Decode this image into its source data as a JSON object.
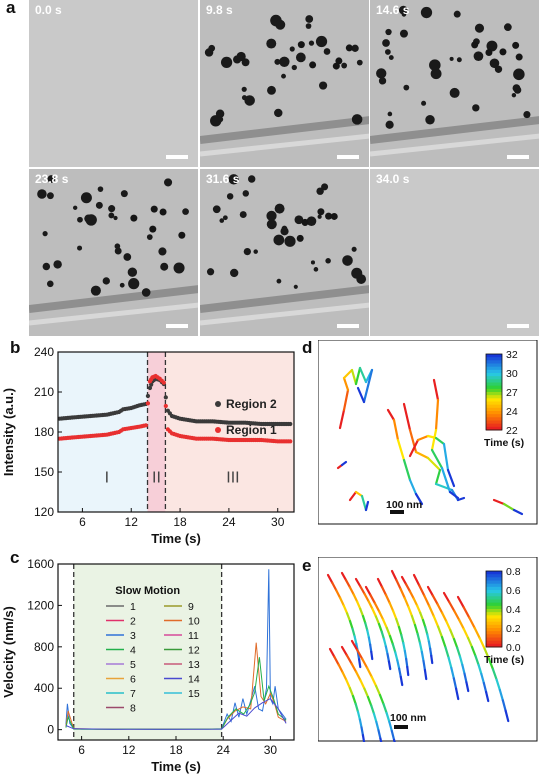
{
  "figure": {
    "panel_a": {
      "letter": "a",
      "frames": [
        {
          "time": "0.0 s",
          "particles": false
        },
        {
          "time": "9.8 s",
          "particles": true
        },
        {
          "time": "14.6 s",
          "particles": true
        },
        {
          "time": "23.8 s",
          "particles": true
        },
        {
          "time": "31.6 s",
          "particles": true
        },
        {
          "time": "34.0 s",
          "particles": false
        }
      ]
    },
    "panel_b": {
      "letter": "b",
      "region_labels": [
        "I",
        "II",
        "III"
      ],
      "colors": {
        "region2": "#3a3a3a",
        "region1": "#e83030",
        "zone1": "#eaf5fb",
        "zone2": "#f7cfd8",
        "zone3": "#fbe6e2"
      }
    },
    "panel_c": {
      "letter": "c",
      "legend_title": "Slow Motion",
      "legend_entries": [
        "1",
        "2",
        "3",
        "4",
        "5",
        "6",
        "7",
        "8",
        "9",
        "10",
        "11",
        "12",
        "13",
        "14",
        "15"
      ],
      "legend_colors": [
        "#6b6b6b",
        "#e0306a",
        "#2f72d8",
        "#23b04b",
        "#a67ad6",
        "#e8a33a",
        "#28bfc9",
        "#9c4a6b",
        "#9a9a2a",
        "#e06b2a",
        "#d64a9a",
        "#3a9a3a",
        "#c85a7a",
        "#4a4ad0",
        "#35c0d8"
      ]
    },
    "panel_d": {
      "letter": "d",
      "colorbar_ticks": [
        "32",
        "30",
        "27",
        "24",
        "22"
      ],
      "colorbar_label": "Time (s)",
      "scalebar_label": "100 nm"
    },
    "panel_e": {
      "letter": "e",
      "colorbar_ticks": [
        "0.8",
        "0.6",
        "0.4",
        "0.2",
        "0.0"
      ],
      "colorbar_label": "Time (s)",
      "scalebar_label": "100 nm"
    }
  },
  "chart_data": [
    {
      "type": "scatter",
      "xlabel": "Time (s)",
      "ylabel": "Intensity (a.u.)",
      "xlim": [
        3,
        32
      ],
      "ylim": [
        120,
        240
      ],
      "x_ticks": [
        "6",
        "12",
        "18",
        "24",
        "30"
      ],
      "y_ticks": [
        "120",
        "150",
        "180",
        "210",
        "240"
      ],
      "vlines": [
        14,
        16.2
      ],
      "legend": "right",
      "series": [
        {
          "name": "Region 2",
          "points": [
            [
              3.2,
              190
            ],
            [
              5,
              191
            ],
            [
              7,
              192
            ],
            [
              9,
              193
            ],
            [
              10.5,
              195
            ],
            [
              11,
              197
            ],
            [
              12,
              198
            ],
            [
              13,
              200
            ],
            [
              13.8,
              201
            ],
            [
              14.3,
              213
            ],
            [
              14.6,
              218
            ],
            [
              15.0,
              220
            ],
            [
              15.5,
              219
            ],
            [
              16.0,
              216
            ],
            [
              16.5,
              196
            ],
            [
              17,
              192
            ],
            [
              18,
              190
            ],
            [
              19,
              189
            ],
            [
              20,
              188
            ],
            [
              22,
              188
            ],
            [
              24,
              187
            ],
            [
              26,
              187
            ],
            [
              28,
              186
            ],
            [
              30,
              186
            ],
            [
              31.8,
              186
            ]
          ]
        },
        {
          "name": "Region 1",
          "points": [
            [
              3.2,
              175
            ],
            [
              5,
              176
            ],
            [
              7,
              177
            ],
            [
              9,
              178
            ],
            [
              10.5,
              180
            ],
            [
              11,
              182
            ],
            [
              12,
              183
            ],
            [
              13,
              184
            ],
            [
              13.8,
              185
            ],
            [
              14.3,
              218
            ],
            [
              14.6,
              221
            ],
            [
              15.0,
              222
            ],
            [
              15.5,
              220
            ],
            [
              16.0,
              217
            ],
            [
              16.5,
              182
            ],
            [
              17,
              179
            ],
            [
              18,
              177
            ],
            [
              19,
              176
            ],
            [
              20,
              175
            ],
            [
              22,
              175
            ],
            [
              24,
              174
            ],
            [
              26,
              174
            ],
            [
              28,
              174
            ],
            [
              30,
              173
            ],
            [
              31.8,
              173
            ]
          ]
        }
      ]
    },
    {
      "type": "line",
      "xlabel": "Time (s)",
      "ylabel": "Velocity (nm/s)",
      "xlim": [
        3,
        33
      ],
      "ylim": [
        -100,
        1600
      ],
      "x_ticks": [
        "6",
        "12",
        "18",
        "24",
        "30"
      ],
      "y_ticks": [
        "0",
        "400",
        "800",
        "1200",
        "1600"
      ],
      "vlines": [
        5,
        23.8
      ],
      "series": [
        {
          "name": "3",
          "x": [
            4,
            4.2,
            4.5,
            5,
            6,
            8,
            10,
            12,
            14,
            16,
            18,
            20,
            22,
            23.8,
            24.5,
            25,
            25.5,
            26,
            26.5,
            27,
            27.5,
            28,
            28.5,
            29,
            29.5,
            29.8,
            30,
            30.3,
            30.6,
            31,
            31.5,
            32
          ],
          "values": [
            50,
            250,
            60,
            10,
            5,
            5,
            4,
            6,
            5,
            4,
            5,
            6,
            5,
            8,
            150,
            80,
            260,
            120,
            300,
            150,
            280,
            420,
            200,
            180,
            400,
            1550,
            300,
            250,
            420,
            200,
            150,
            100
          ]
        },
        {
          "name": "10",
          "x": [
            4,
            4.3,
            5,
            8,
            12,
            16,
            20,
            23.8,
            24.5,
            25.5,
            26.5,
            27.5,
            28.2,
            28.8,
            29.4,
            30,
            30.5,
            31,
            32
          ],
          "values": [
            30,
            180,
            10,
            5,
            5,
            5,
            5,
            6,
            100,
            180,
            220,
            200,
            840,
            320,
            250,
            350,
            260,
            120,
            80
          ]
        },
        {
          "name": "4",
          "x": [
            4,
            4.3,
            5,
            8,
            12,
            16,
            20,
            23.8,
            24.6,
            25.6,
            26.6,
            27.4,
            28,
            28.6,
            29.2,
            29.8,
            30.4,
            31,
            32
          ],
          "values": [
            20,
            120,
            5,
            4,
            5,
            4,
            5,
            5,
            120,
            200,
            150,
            240,
            360,
            700,
            280,
            420,
            300,
            150,
            90
          ]
        },
        {
          "name": "14",
          "x": [
            4,
            5,
            10,
            15,
            20,
            23.8,
            25,
            26,
            27,
            28,
            29,
            30,
            31,
            32
          ],
          "values": [
            40,
            8,
            4,
            4,
            4,
            5,
            90,
            160,
            130,
            210,
            260,
            300,
            200,
            60
          ]
        }
      ]
    }
  ]
}
